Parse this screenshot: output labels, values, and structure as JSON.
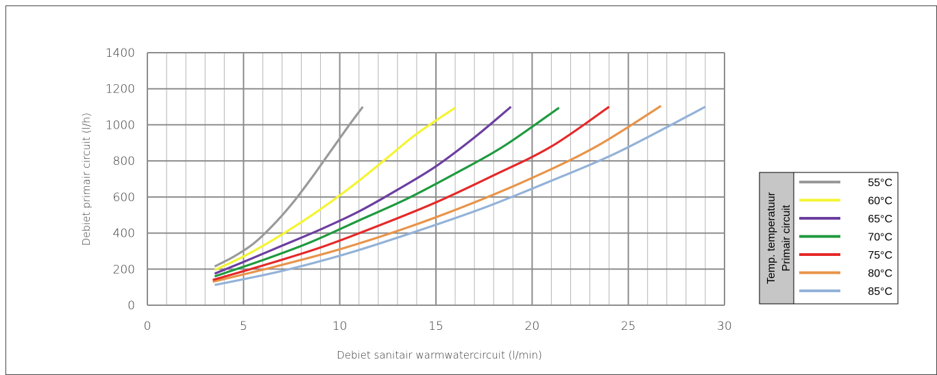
{
  "chart_data": {
    "type": "line",
    "xlabel": "Debiet sanitair warmwatercircuit (l/min)",
    "ylabel": "Debiet primair circuit (l/h)",
    "xlim": [
      0,
      30
    ],
    "ylim": [
      0,
      1400
    ],
    "x_ticks": [
      "0",
      "5",
      "10",
      "15",
      "20",
      "25",
      "30"
    ],
    "y_ticks": [
      "0",
      "200",
      "400",
      "600",
      "800",
      "1000",
      "1200",
      "1400"
    ],
    "grid": true,
    "legend_position": "right",
    "legend_title": [
      "Temp. temperatuur",
      "Primair circuit"
    ],
    "series": [
      {
        "name": "55°C",
        "color": "#999999",
        "points": [
          [
            3.5,
            215
          ],
          [
            4.5,
            270
          ],
          [
            5.5,
            340
          ],
          [
            6.5,
            440
          ],
          [
            7.5,
            560
          ],
          [
            8.5,
            700
          ],
          [
            9.5,
            850
          ],
          [
            10.5,
            1000
          ],
          [
            11.2,
            1100
          ]
        ]
      },
      {
        "name": "60°C",
        "color": "#f4f432",
        "points": [
          [
            3.5,
            195
          ],
          [
            5,
            270
          ],
          [
            6.5,
            360
          ],
          [
            8,
            460
          ],
          [
            9.5,
            570
          ],
          [
            11,
            690
          ],
          [
            12.5,
            820
          ],
          [
            14,
            950
          ],
          [
            16,
            1095
          ]
        ]
      },
      {
        "name": "65°C",
        "color": "#6b3ea0",
        "points": [
          [
            3.5,
            175
          ],
          [
            5,
            240
          ],
          [
            7,
            330
          ],
          [
            9,
            420
          ],
          [
            11,
            520
          ],
          [
            13,
            640
          ],
          [
            15,
            770
          ],
          [
            17,
            930
          ],
          [
            18.9,
            1100
          ]
        ]
      },
      {
        "name": "70°C",
        "color": "#1e9a3e",
        "points": [
          [
            3.5,
            160
          ],
          [
            6,
            250
          ],
          [
            8.5,
            350
          ],
          [
            11,
            470
          ],
          [
            13.5,
            590
          ],
          [
            16,
            730
          ],
          [
            18.5,
            880
          ],
          [
            21.4,
            1095
          ]
        ]
      },
      {
        "name": "75°C",
        "color": "#e62828",
        "points": [
          [
            3.4,
            140
          ],
          [
            6,
            220
          ],
          [
            9,
            320
          ],
          [
            12,
            440
          ],
          [
            15,
            570
          ],
          [
            18,
            720
          ],
          [
            21,
            880
          ],
          [
            24,
            1100
          ]
        ]
      },
      {
        "name": "80°C",
        "color": "#e8944a",
        "points": [
          [
            3.4,
            130
          ],
          [
            6.5,
            210
          ],
          [
            10,
            310
          ],
          [
            13.5,
            430
          ],
          [
            17,
            570
          ],
          [
            20.5,
            730
          ],
          [
            23.5,
            890
          ],
          [
            26.7,
            1105
          ]
        ]
      },
      {
        "name": "85°C",
        "color": "#93b2d8",
        "points": [
          [
            3.5,
            112
          ],
          [
            7,
            190
          ],
          [
            10.5,
            290
          ],
          [
            14,
            410
          ],
          [
            17.5,
            540
          ],
          [
            21,
            690
          ],
          [
            24.5,
            850
          ],
          [
            29,
            1100
          ]
        ]
      }
    ]
  }
}
